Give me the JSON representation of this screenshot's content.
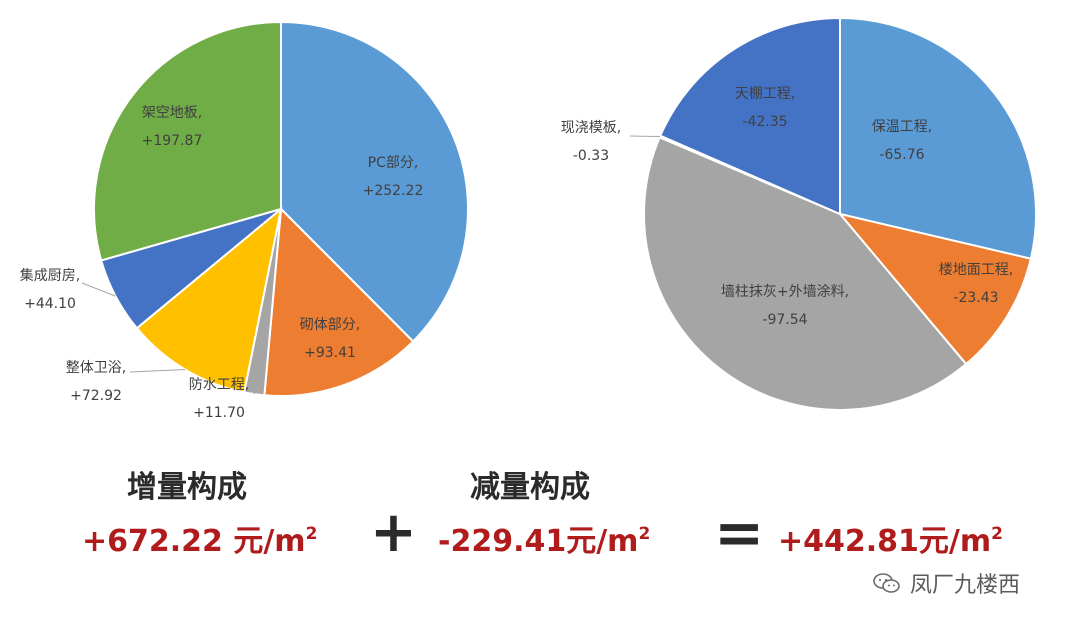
{
  "chart_data": [
    {
      "type": "pie",
      "title": "增量构成",
      "slices": [
        {
          "label": "PC部分,",
          "value_text": "+252.22",
          "value": 252.22,
          "color": "#5B9BD5"
        },
        {
          "label": "砌体部分,",
          "value_text": "+93.41",
          "value": 93.41,
          "color": "#ED7D31"
        },
        {
          "label": "防水工程,",
          "value_text": "+11.70",
          "value": 11.7,
          "color": "#A5A5A5"
        },
        {
          "label": "整体卫浴,",
          "value_text": "+72.92",
          "value": 72.92,
          "color": "#FFC000"
        },
        {
          "label": "集成厨房,",
          "value_text": "+44.10",
          "value": 44.1,
          "color": "#4472C4"
        },
        {
          "label": "架空地板,",
          "value_text": "+197.87",
          "value": 197.87,
          "color": "#70AD47"
        }
      ]
    },
    {
      "type": "pie",
      "title": "减量构成",
      "slices": [
        {
          "label": "保温工程,",
          "value_text": "-65.76",
          "value": 65.76,
          "color": "#5B9BD5"
        },
        {
          "label": "楼地面工程,",
          "value_text": "-23.43",
          "value": 23.43,
          "color": "#ED7D31"
        },
        {
          "label": "墙柱抹灰+外墙涂料,",
          "value_text": "-97.54",
          "value": 97.54,
          "color": "#A5A5A5"
        },
        {
          "label": "现浇模板,",
          "value_text": "-0.33",
          "value": 0.33,
          "color": "#FFC000"
        },
        {
          "label": "天棚工程,",
          "value_text": "-42.35",
          "value": 42.35,
          "color": "#4472C4"
        }
      ]
    }
  ],
  "summary": {
    "increase_heading": "增量构成",
    "increase_total": "+672.22 元/m",
    "decrease_heading": "减量构成",
    "decrease_total": "-229.41元/m",
    "plus_sign": "+",
    "equals_sign": "=",
    "net_total": "+442.81元/m",
    "unit_superscript": "2"
  },
  "watermark": {
    "text": "凤厂九楼西",
    "icon": "wechat-icon"
  }
}
